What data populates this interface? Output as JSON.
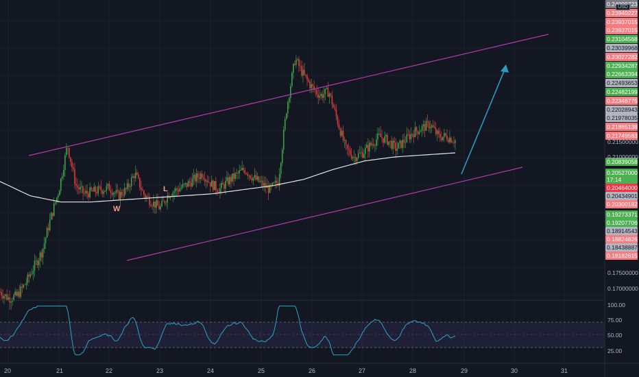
{
  "currency": "USD",
  "annotations": {
    "w": "W",
    "l": "L"
  },
  "price_tags": [
    {
      "text": "0.24000723",
      "color": "#7a7c85"
    },
    {
      "text": "0.23940227",
      "color": "#f77c80"
    },
    {
      "text": "0.23937015",
      "color": "#f77c80"
    },
    {
      "text": "0.23937015",
      "color": "#f77c80"
    },
    {
      "text": "0.23104568",
      "color": "#4caf50"
    },
    {
      "text": "0.23039968",
      "color": "#b2b5be"
    },
    {
      "text": "0.23027282",
      "color": "#f77c80"
    },
    {
      "text": "0.22934287",
      "color": "#4caf50"
    },
    {
      "text": "0.22663394",
      "color": "#4caf50"
    },
    {
      "text": "0.22493653",
      "color": "#b2b5be"
    },
    {
      "text": "0.22482199",
      "color": "#4caf50"
    },
    {
      "text": "0.22346775",
      "color": "#f77c80"
    },
    {
      "text": "0.22028943",
      "color": "#b2b5be"
    },
    {
      "text": "0.21978035",
      "color": "#b2b5be"
    },
    {
      "text": "0.21865138",
      "color": "#f77c80"
    },
    {
      "text": "0.21749583",
      "color": "#f77c80"
    }
  ],
  "price_tags_lower": [
    {
      "text": "0.20839058",
      "color": "#4caf50"
    },
    {
      "text": "0.20527000",
      "color": "#4caf50"
    },
    {
      "text": "17:14",
      "color": "#4caf50"
    },
    {
      "text": "0.20464000",
      "color": "#f23645"
    },
    {
      "text": "0.20434901",
      "color": "#b2b5be"
    },
    {
      "text": "0.20300182",
      "color": "#f77c80"
    },
    {
      "text": "0.19273371",
      "color": "#4caf50"
    },
    {
      "text": "0.19207706",
      "color": "#4caf50"
    },
    {
      "text": "0.18914543",
      "color": "#b2b5be"
    },
    {
      "text": "0.18824826",
      "color": "#f77c80"
    },
    {
      "text": "0.18438887",
      "color": "#b2b5be"
    },
    {
      "text": "0.18182615",
      "color": "#f77c80"
    }
  ],
  "plain_labels": {
    "p215": "0.21500000",
    "p210": "0.21000000",
    "p175": "0.17500000",
    "p170": "0.17000000"
  },
  "rsi_labels": [
    "100.00",
    "75.00",
    "50.00",
    "25.00"
  ],
  "x_labels": [
    "20",
    "21",
    "22",
    "23",
    "24",
    "25",
    "26",
    "27",
    "28",
    "29",
    "30",
    "31"
  ],
  "chart_data": {
    "type": "candlestick",
    "x_axis": [
      "20",
      "21",
      "22",
      "23",
      "24",
      "25",
      "26",
      "27",
      "28",
      "29",
      "30",
      "31"
    ],
    "y_range": [
      0.168,
      0.241
    ],
    "close_path": [
      0.17,
      0.1685,
      0.169,
      0.172,
      0.176,
      0.18,
      0.188,
      0.195,
      0.206,
      0.196,
      0.194,
      0.1945,
      0.195,
      0.1955,
      0.1935,
      0.195,
      0.199,
      0.194,
      0.192,
      0.1905,
      0.194,
      0.195,
      0.196,
      0.1975,
      0.199,
      0.1965,
      0.195,
      0.197,
      0.1985,
      0.2,
      0.198,
      0.1965,
      0.195,
      0.197,
      0.215,
      0.227,
      0.223,
      0.22,
      0.218,
      0.219,
      0.212,
      0.205,
      0.203,
      0.204,
      0.206,
      0.208,
      0.207,
      0.205,
      0.207,
      0.209,
      0.21,
      0.211,
      0.208,
      0.208,
      0.207
    ],
    "ma_path": [
      0.197,
      0.1935,
      0.192,
      0.192,
      0.1925,
      0.193,
      0.1935,
      0.194,
      0.195,
      0.196,
      0.1975,
      0.2,
      0.202,
      0.203,
      0.2035,
      0.204
    ],
    "rsi": {
      "levels": [
        70,
        50,
        30
      ],
      "range": [
        0,
        100
      ]
    }
  }
}
